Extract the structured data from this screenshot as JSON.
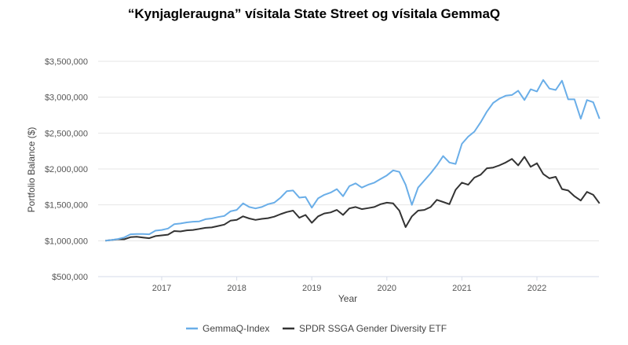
{
  "chart_data": {
    "type": "line",
    "title": "“Kynjagleraugna” vísitala State Street og vísitala GemmaQ",
    "xlabel": "Year",
    "ylabel": "Portfolio Balance ($)",
    "x_start": 2016.25,
    "x_step_years": 0.0833333,
    "xlim": [
      2016.18,
      2022.8
    ],
    "ylim": [
      500000,
      3500000
    ],
    "x_ticks": [
      2017,
      2018,
      2019,
      2020,
      2021,
      2022
    ],
    "x_tick_labels": [
      "2017",
      "2018",
      "2019",
      "2020",
      "2021",
      "2022"
    ],
    "y_ticks": [
      500000,
      1000000,
      1500000,
      2000000,
      2500000,
      3000000,
      3500000
    ],
    "y_tick_labels": [
      "$500,000",
      "$1,000,000",
      "$1,500,000",
      "$2,000,000",
      "$2,500,000",
      "$3,000,000",
      "$3,500,000"
    ],
    "grid": true,
    "legend_position": "bottom",
    "series": [
      {
        "name": "GemmaQ-Index",
        "color": "#6aaee8",
        "values": [
          1000000,
          1010000,
          1025000,
          1045000,
          1090000,
          1095000,
          1095000,
          1090000,
          1140000,
          1150000,
          1170000,
          1230000,
          1240000,
          1255000,
          1265000,
          1270000,
          1300000,
          1310000,
          1330000,
          1345000,
          1410000,
          1430000,
          1520000,
          1470000,
          1450000,
          1470000,
          1510000,
          1530000,
          1600000,
          1690000,
          1700000,
          1600000,
          1610000,
          1460000,
          1590000,
          1640000,
          1670000,
          1720000,
          1620000,
          1760000,
          1800000,
          1740000,
          1780000,
          1810000,
          1860000,
          1910000,
          1980000,
          1960000,
          1780000,
          1500000,
          1740000,
          1840000,
          1940000,
          2050000,
          2180000,
          2090000,
          2070000,
          2350000,
          2450000,
          2520000,
          2650000,
          2800000,
          2920000,
          2980000,
          3020000,
          3030000,
          3090000,
          2960000,
          3110000,
          3080000,
          3240000,
          3120000,
          3100000,
          3230000,
          2970000,
          2970000,
          2700000,
          2960000,
          2930000,
          2700000
        ]
      },
      {
        "name": "SPDR SSGA Gender Diversity ETF",
        "color": "#333333",
        "values": [
          1000000,
          1010000,
          1020000,
          1020000,
          1050000,
          1055000,
          1045000,
          1035000,
          1065000,
          1075000,
          1085000,
          1135000,
          1130000,
          1145000,
          1150000,
          1165000,
          1180000,
          1185000,
          1205000,
          1225000,
          1280000,
          1290000,
          1340000,
          1310000,
          1290000,
          1305000,
          1315000,
          1335000,
          1370000,
          1400000,
          1420000,
          1320000,
          1360000,
          1250000,
          1340000,
          1380000,
          1395000,
          1430000,
          1360000,
          1450000,
          1470000,
          1440000,
          1455000,
          1470000,
          1510000,
          1530000,
          1520000,
          1420000,
          1190000,
          1340000,
          1420000,
          1430000,
          1470000,
          1570000,
          1540000,
          1510000,
          1710000,
          1810000,
          1780000,
          1880000,
          1920000,
          2010000,
          2020000,
          2050000,
          2090000,
          2140000,
          2050000,
          2170000,
          2030000,
          2080000,
          1930000,
          1870000,
          1890000,
          1720000,
          1700000,
          1620000,
          1560000,
          1680000,
          1640000,
          1520000
        ]
      }
    ]
  }
}
